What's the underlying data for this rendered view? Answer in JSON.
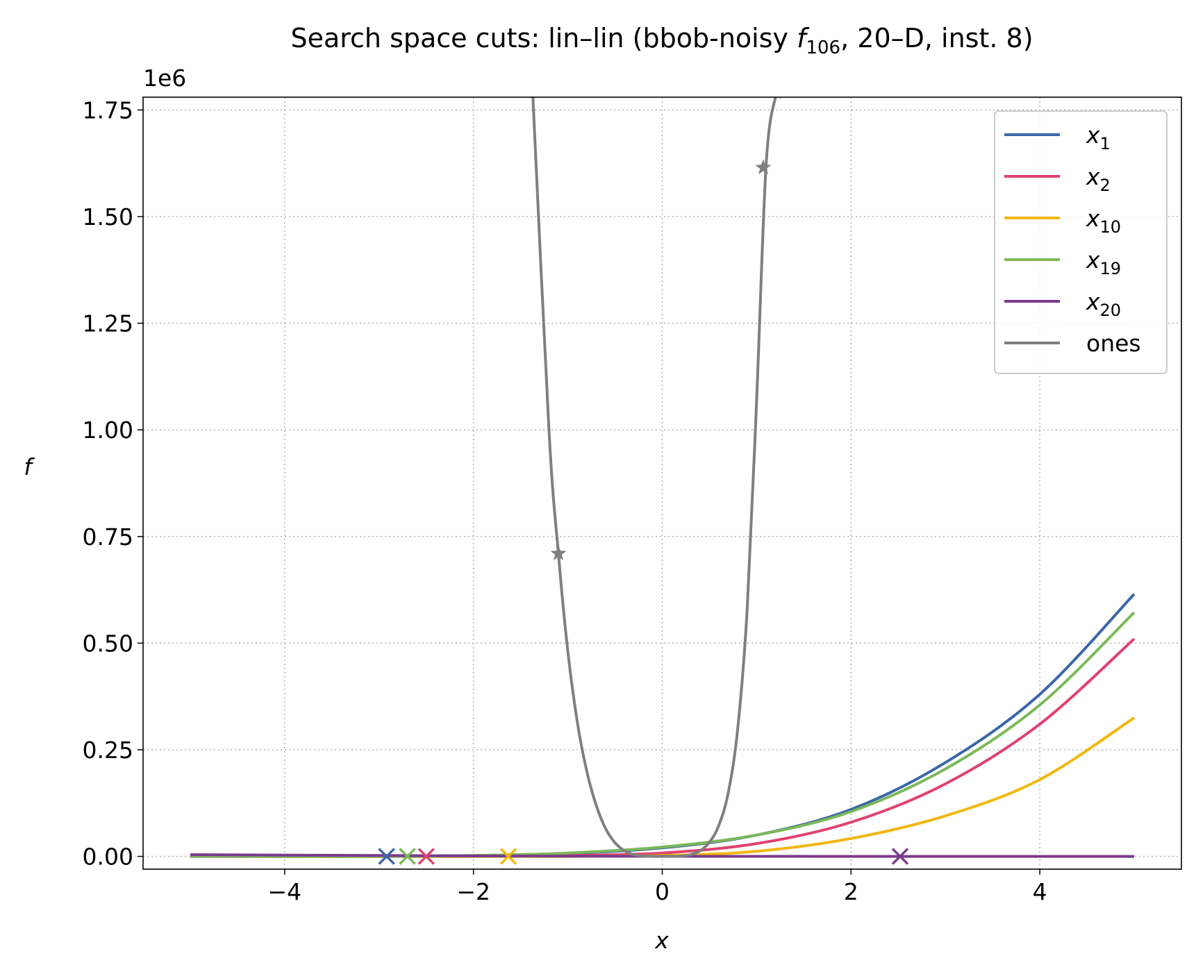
{
  "chart_data": {
    "type": "line",
    "title_main": "Search space cuts: lin–lin (bbob-noisy ",
    "title_f": "f",
    "title_sub": "106",
    "title_rest": ", 20–D, inst. 8)",
    "xlabel": "x",
    "ylabel": "f",
    "y_scale_label": "1e6",
    "xlim": [
      -5.5,
      5.5
    ],
    "ylim": [
      -0.03,
      1.78
    ],
    "y_multiplier": 1000000,
    "grid": true,
    "legend_position": "top-right",
    "x_ticks": [
      -4,
      -2,
      0,
      2,
      4
    ],
    "x_tick_labels": [
      "−4",
      "−2",
      "0",
      "2",
      "4"
    ],
    "y_ticks": [
      0,
      0.25,
      0.5,
      0.75,
      1.0,
      1.25,
      1.5,
      1.75
    ],
    "y_tick_labels": [
      "0.00",
      "0.25",
      "0.50",
      "0.75",
      "1.00",
      "1.25",
      "1.50",
      "1.75"
    ],
    "series": [
      {
        "name": "x",
        "sub": "1",
        "color": "#3a67a8",
        "x": [
          -5,
          -4,
          -3,
          -2,
          -1,
          0,
          1,
          2,
          3,
          4,
          5
        ],
        "y": [
          0.0,
          0.0,
          0.0,
          0.002,
          0.007,
          0.02,
          0.05,
          0.11,
          0.22,
          0.38,
          0.615
        ],
        "marker": {
          "x": -2.92,
          "y": 0,
          "symbol": "x"
        }
      },
      {
        "name": "x",
        "sub": "2",
        "color": "#e0426f",
        "x": [
          -5,
          -4,
          -3,
          -2,
          -1,
          0,
          1,
          2,
          3,
          4,
          5
        ],
        "y": [
          0.0,
          0.0,
          0.0,
          0.0,
          0.002,
          0.008,
          0.03,
          0.08,
          0.17,
          0.31,
          0.51
        ],
        "marker": {
          "x": -2.5,
          "y": 0,
          "symbol": "x"
        }
      },
      {
        "name": "x",
        "sub": "10",
        "color": "#f1b70f",
        "x": [
          -5,
          -4,
          -3,
          -2,
          -1,
          0,
          1,
          2,
          3,
          4,
          5
        ],
        "y": [
          0.0,
          0.0,
          0.0,
          0.0,
          0.0,
          0.002,
          0.012,
          0.042,
          0.095,
          0.18,
          0.325
        ],
        "marker": {
          "x": -1.63,
          "y": 0,
          "symbol": "x"
        }
      },
      {
        "name": "x",
        "sub": "19",
        "color": "#7cb85b",
        "x": [
          -5,
          -4,
          -3,
          -2,
          -1,
          0,
          1,
          2,
          3,
          4,
          5
        ],
        "y": [
          0.0,
          0.0,
          0.0,
          0.002,
          0.008,
          0.022,
          0.05,
          0.105,
          0.205,
          0.355,
          0.572
        ],
        "marker": {
          "x": -2.7,
          "y": 0,
          "symbol": "x"
        }
      },
      {
        "name": "x",
        "sub": "20",
        "color": "#7b3b8c",
        "x": [
          -5,
          -4,
          -3,
          -2,
          -1,
          0,
          1,
          2,
          3,
          4,
          5
        ],
        "y": [
          0.004,
          0.003,
          0.002,
          0.001,
          0.0005,
          0.0002,
          0.0001,
          0.0,
          0.0,
          0.0,
          0.0
        ],
        "marker": {
          "x": 2.52,
          "y": 0,
          "symbol": "x"
        }
      },
      {
        "name": "ones",
        "color": "#7f7f7f",
        "x": [
          -1.37,
          -1.2,
          -1.1,
          -1.0,
          -0.9,
          -0.8,
          -0.7,
          -0.6,
          -0.5,
          -0.4,
          -0.3,
          -0.2,
          -0.1,
          0.0,
          0.1,
          0.2,
          0.3,
          0.4,
          0.5,
          0.6,
          0.7,
          0.8,
          0.9,
          1.0,
          1.1,
          1.2,
          1.26
        ],
        "y": [
          1.78,
          1.0,
          0.71,
          0.48,
          0.315,
          0.2,
          0.12,
          0.065,
          0.032,
          0.013,
          0.004,
          0.001,
          0.0,
          0.0,
          0.0,
          0.001,
          0.004,
          0.013,
          0.033,
          0.073,
          0.15,
          0.3,
          0.58,
          1.07,
          1.62,
          1.78,
          1.78
        ],
        "star_markers": [
          {
            "x": -1.1,
            "y": 0.71
          },
          {
            "x": 1.07,
            "y": 1.615
          }
        ]
      }
    ]
  }
}
